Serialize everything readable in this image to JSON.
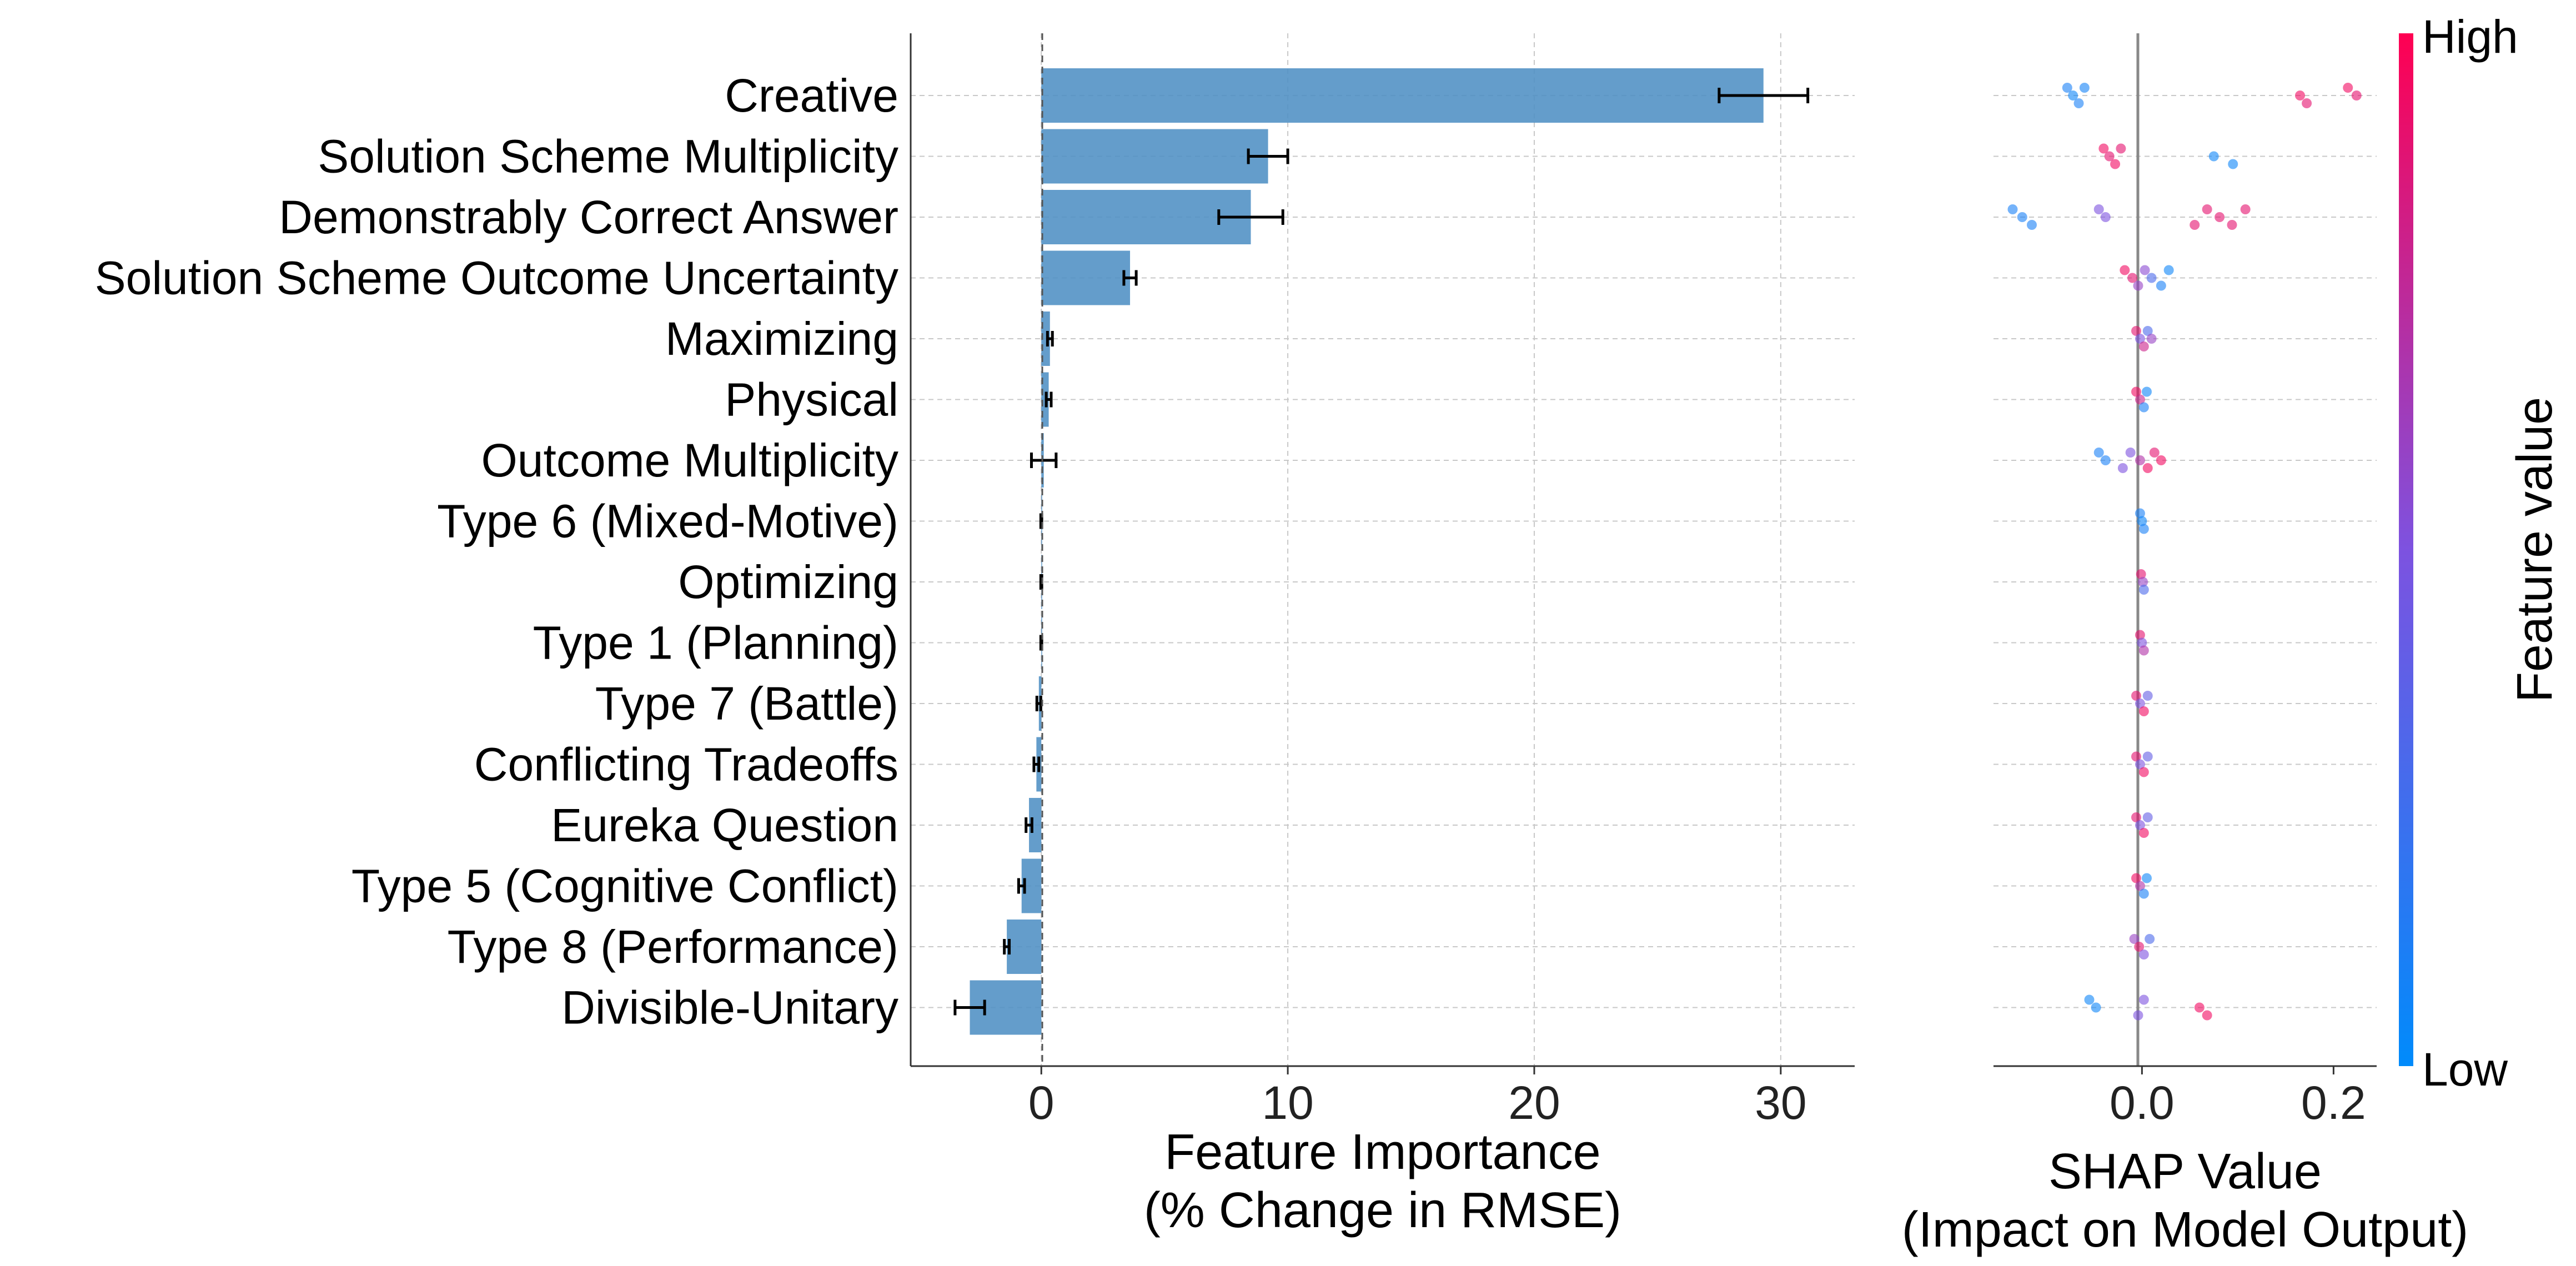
{
  "chart_data": [
    {
      "type": "bar",
      "orientation": "horizontal",
      "categories": [
        "Creative",
        "Solution Scheme Multiplicity",
        "Demonstrably Correct Answer",
        "Solution Scheme Outcome Uncertainty",
        "Maximizing",
        "Physical",
        "Outcome Multiplicity",
        "Type 6 (Mixed-Motive)",
        "Optimizing",
        "Type 1 (Planning)",
        "Type 7 (Battle)",
        "Conflicting Tradeoffs",
        "Eureka Question",
        "Type 5 (Cognitive Conflict)",
        "Type 8 (Performance)",
        "Divisible-Unitary"
      ],
      "values": [
        29.3,
        9.2,
        8.5,
        3.6,
        0.35,
        0.3,
        0.1,
        0.0,
        0.0,
        0.0,
        -0.1,
        -0.2,
        -0.5,
        -0.8,
        -1.4,
        -2.9
      ],
      "errors": [
        1.8,
        0.8,
        1.3,
        0.25,
        0.1,
        0.1,
        0.5,
        0.02,
        0.02,
        0.02,
        0.08,
        0.1,
        0.12,
        0.12,
        0.1,
        0.6
      ],
      "xlabel_line1": "Feature Importance",
      "xlabel_line2": "(% Change in RMSE)",
      "xlim": [
        -5.3,
        33
      ],
      "xticks": [
        0,
        10,
        20,
        30
      ],
      "xtick_labels": [
        "0",
        "10",
        "20",
        "30"
      ],
      "grid": true,
      "bar_color": "#4f8fc4",
      "error_bar_color": "#000000"
    },
    {
      "type": "scatter",
      "title": "",
      "xlabel_line1": "SHAP Value",
      "xlabel_line2": "(Impact on Model Output)",
      "xlim": [
        -0.155,
        0.245
      ],
      "xticks": [
        0.0,
        0.2
      ],
      "xtick_labels": [
        "0.0",
        "0.2"
      ],
      "categories_ref": "same order as bar chart",
      "rows": [
        {
          "points": [
            {
              "x": -0.078,
              "v": 0.1
            },
            {
              "x": -0.072,
              "v": 0.05
            },
            {
              "x": -0.066,
              "v": 0.1
            },
            {
              "x": -0.06,
              "v": 0.08
            },
            {
              "x": 0.165,
              "v": 0.95
            },
            {
              "x": 0.172,
              "v": 0.9
            },
            {
              "x": 0.215,
              "v": 0.95
            },
            {
              "x": 0.224,
              "v": 0.9
            }
          ]
        },
        {
          "points": [
            {
              "x": -0.04,
              "v": 0.95
            },
            {
              "x": -0.034,
              "v": 0.9
            },
            {
              "x": -0.028,
              "v": 0.95
            },
            {
              "x": -0.022,
              "v": 0.9
            },
            {
              "x": 0.075,
              "v": 0.05
            },
            {
              "x": 0.095,
              "v": 0.05
            }
          ]
        },
        {
          "points": [
            {
              "x": -0.135,
              "v": 0.1
            },
            {
              "x": -0.125,
              "v": 0.1
            },
            {
              "x": -0.115,
              "v": 0.1
            },
            {
              "x": -0.045,
              "v": 0.5
            },
            {
              "x": -0.038,
              "v": 0.5
            },
            {
              "x": 0.055,
              "v": 0.9
            },
            {
              "x": 0.068,
              "v": 0.9
            },
            {
              "x": 0.081,
              "v": 0.9
            },
            {
              "x": 0.094,
              "v": 0.9
            },
            {
              "x": 0.108,
              "v": 0.9
            }
          ]
        },
        {
          "points": [
            {
              "x": -0.018,
              "v": 0.95
            },
            {
              "x": -0.01,
              "v": 0.9
            },
            {
              "x": -0.004,
              "v": 0.6
            },
            {
              "x": 0.003,
              "v": 0.55
            },
            {
              "x": 0.01,
              "v": 0.3
            },
            {
              "x": 0.02,
              "v": 0.1
            },
            {
              "x": 0.028,
              "v": 0.05
            }
          ]
        },
        {
          "points": [
            {
              "x": -0.006,
              "v": 0.9
            },
            {
              "x": -0.002,
              "v": 0.5
            },
            {
              "x": 0.002,
              "v": 0.8
            },
            {
              "x": 0.006,
              "v": 0.3
            },
            {
              "x": 0.01,
              "v": 0.6
            }
          ]
        },
        {
          "points": [
            {
              "x": -0.006,
              "v": 0.95
            },
            {
              "x": -0.002,
              "v": 0.8
            },
            {
              "x": 0.002,
              "v": 0.1
            },
            {
              "x": 0.005,
              "v": 0.05
            }
          ]
        },
        {
          "points": [
            {
              "x": -0.045,
              "v": 0.1
            },
            {
              "x": -0.038,
              "v": 0.1
            },
            {
              "x": -0.02,
              "v": 0.5
            },
            {
              "x": -0.012,
              "v": 0.5
            },
            {
              "x": -0.002,
              "v": 0.7
            },
            {
              "x": 0.006,
              "v": 0.95
            },
            {
              "x": 0.013,
              "v": 0.9
            },
            {
              "x": 0.02,
              "v": 0.95
            }
          ]
        },
        {
          "points": [
            {
              "x": -0.002,
              "v": 0.1
            },
            {
              "x": 0.0,
              "v": 0.05
            },
            {
              "x": 0.002,
              "v": 0.1
            }
          ]
        },
        {
          "points": [
            {
              "x": -0.001,
              "v": 0.9
            },
            {
              "x": 0.001,
              "v": 0.6
            },
            {
              "x": 0.002,
              "v": 0.3
            }
          ]
        },
        {
          "points": [
            {
              "x": -0.002,
              "v": 0.9
            },
            {
              "x": 0.0,
              "v": 0.5
            },
            {
              "x": 0.002,
              "v": 0.7
            }
          ]
        },
        {
          "points": [
            {
              "x": -0.006,
              "v": 0.9
            },
            {
              "x": -0.002,
              "v": 0.5
            },
            {
              "x": 0.002,
              "v": 0.95
            },
            {
              "x": 0.006,
              "v": 0.4
            }
          ]
        },
        {
          "points": [
            {
              "x": -0.006,
              "v": 0.9
            },
            {
              "x": -0.002,
              "v": 0.5
            },
            {
              "x": 0.002,
              "v": 0.95
            },
            {
              "x": 0.006,
              "v": 0.4
            }
          ]
        },
        {
          "points": [
            {
              "x": -0.006,
              "v": 0.9
            },
            {
              "x": -0.002,
              "v": 0.5
            },
            {
              "x": 0.002,
              "v": 0.95
            },
            {
              "x": 0.006,
              "v": 0.4
            }
          ]
        },
        {
          "points": [
            {
              "x": -0.006,
              "v": 0.95
            },
            {
              "x": -0.002,
              "v": 0.7
            },
            {
              "x": 0.002,
              "v": 0.1
            },
            {
              "x": 0.005,
              "v": 0.05
            }
          ]
        },
        {
          "points": [
            {
              "x": -0.008,
              "v": 0.6
            },
            {
              "x": -0.003,
              "v": 0.9
            },
            {
              "x": 0.002,
              "v": 0.5
            },
            {
              "x": 0.008,
              "v": 0.3
            }
          ]
        },
        {
          "points": [
            {
              "x": -0.055,
              "v": 0.05
            },
            {
              "x": -0.048,
              "v": 0.05
            },
            {
              "x": -0.004,
              "v": 0.5
            },
            {
              "x": 0.002,
              "v": 0.5
            },
            {
              "x": 0.06,
              "v": 0.95
            },
            {
              "x": 0.068,
              "v": 0.95
            }
          ]
        }
      ],
      "colorbar": {
        "label": "Feature value",
        "high_label": "High",
        "low_label": "Low",
        "low_color": "#008bfb",
        "high_color": "#ff0052"
      }
    }
  ]
}
